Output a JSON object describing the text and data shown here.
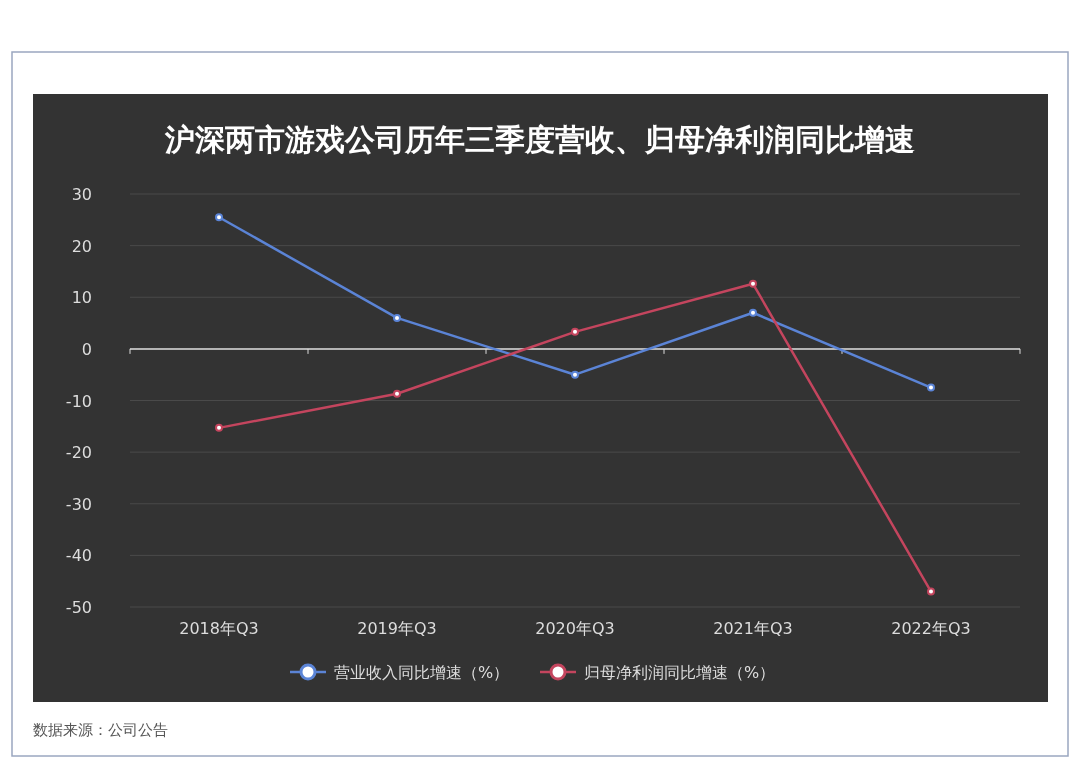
{
  "chart_data": {
    "type": "line",
    "title": "沪深两市游戏公司历年三季度营收、归母净利润同比增速",
    "categories": [
      "2018年Q3",
      "2019年Q3",
      "2020年Q3",
      "2021年Q3",
      "2022年Q3"
    ],
    "series": [
      {
        "name": "营业收入同比增速（%）",
        "color": "#5b84d6",
        "values": [
          25.5,
          6.0,
          -5.0,
          7.0,
          -7.5
        ]
      },
      {
        "name": "归母净利润同比增速（%）",
        "color": "#c4455e",
        "values": [
          -15.3,
          -8.7,
          3.3,
          12.6,
          -47.0
        ]
      }
    ],
    "ylim": [
      -50,
      30
    ],
    "yticks": [
      -50,
      -40,
      -30,
      -20,
      -10,
      0,
      10,
      20,
      30
    ],
    "grid": "y",
    "legend": "bottom",
    "marker": "circle",
    "line_style": "solid",
    "annotations": [
      "数据来源：公司公告"
    ]
  }
}
